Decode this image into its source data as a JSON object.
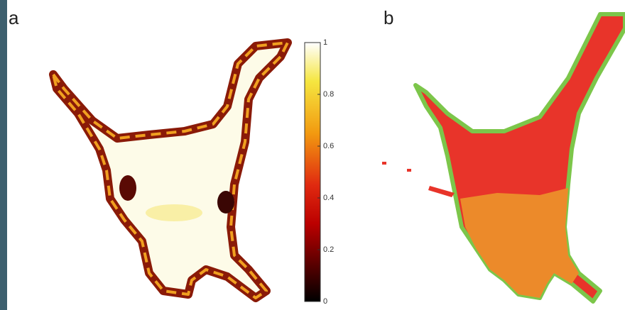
{
  "panels": [
    {
      "label": "a"
    },
    {
      "label": "b"
    }
  ],
  "colorbar": {
    "lim": [
      0,
      1
    ],
    "ticks": [
      0,
      0.2,
      0.4,
      0.6,
      0.8,
      1
    ]
  }
}
